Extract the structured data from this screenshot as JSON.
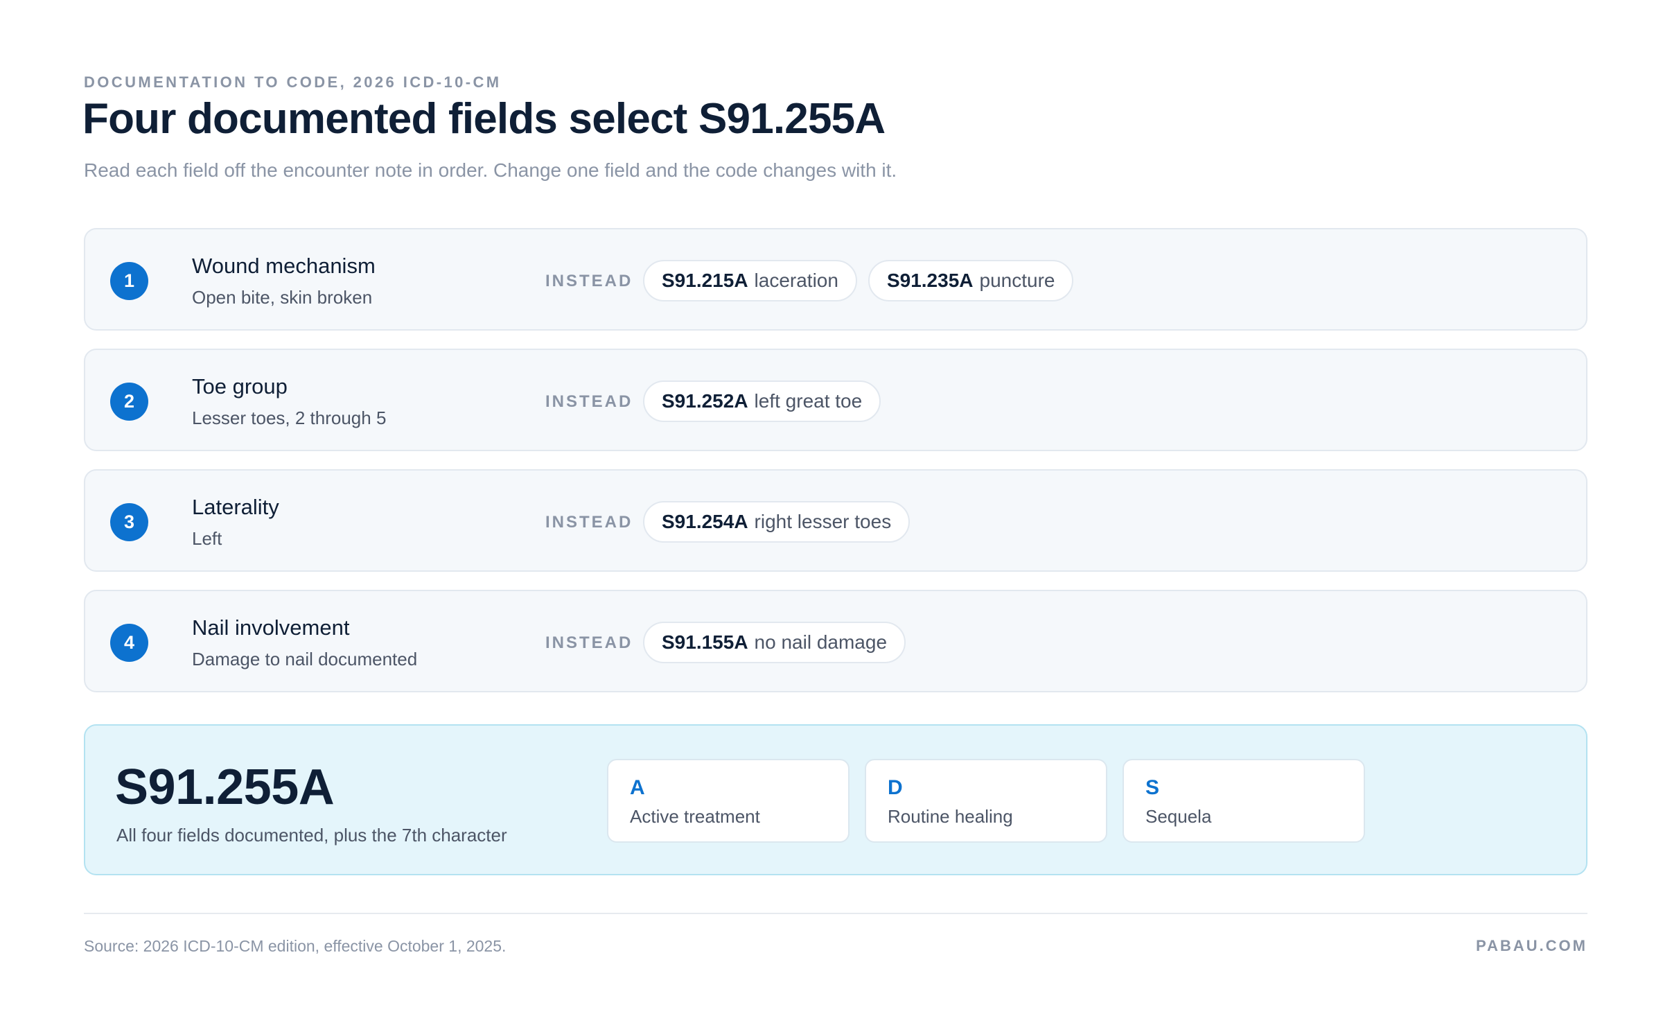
{
  "header": {
    "eyebrow": "DOCUMENTATION TO CODE, 2026 ICD-10-CM",
    "title": "Four documented fields select S91.255A",
    "subtitle": "Read each field off the encounter note in order. Change one field and the code changes with it."
  },
  "instead_label": "INSTEAD",
  "fields": [
    {
      "number": "1",
      "label": "Wound mechanism",
      "value": "Open bite, skin broken",
      "alternatives": [
        {
          "code": "S91.215A",
          "desc": "laceration"
        },
        {
          "code": "S91.235A",
          "desc": "puncture"
        }
      ]
    },
    {
      "number": "2",
      "label": "Toe group",
      "value": "Lesser toes, 2 through 5",
      "alternatives": [
        {
          "code": "S91.252A",
          "desc": "left great toe"
        }
      ]
    },
    {
      "number": "3",
      "label": "Laterality",
      "value": "Left",
      "alternatives": [
        {
          "code": "S91.254A",
          "desc": "right lesser toes"
        }
      ]
    },
    {
      "number": "4",
      "label": "Nail involvement",
      "value": "Damage to nail documented",
      "alternatives": [
        {
          "code": "S91.155A",
          "desc": "no nail damage"
        }
      ]
    }
  ],
  "result": {
    "code": "S91.255A",
    "note": "All four fields documented, plus the 7th character",
    "seventh_characters": [
      {
        "letter": "A",
        "desc": "Active treatment"
      },
      {
        "letter": "D",
        "desc": "Routine healing"
      },
      {
        "letter": "S",
        "desc": "Sequela"
      }
    ]
  },
  "footer": {
    "source": "Source: 2026 ICD-10-CM edition, effective October 1, 2025.",
    "brand": "PABAU.COM"
  },
  "colors": {
    "accent": "#0d72cf",
    "ink": "#0f1f36",
    "muted": "#8a94a5",
    "result_bg": "#e4f5fb"
  }
}
